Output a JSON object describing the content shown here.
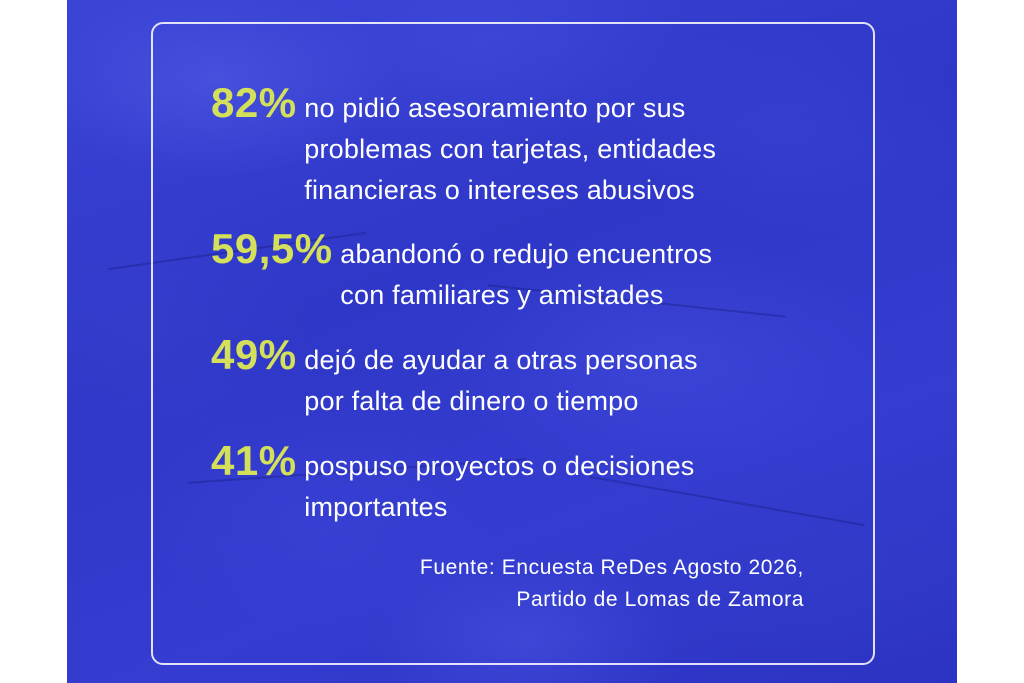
{
  "stats": [
    {
      "percent": "82%",
      "line1": "no pidió asesoramiento por sus",
      "line2": "problemas con tarjetas, entidades",
      "line3": "financieras o intereses abusivos"
    },
    {
      "percent": "59,5%",
      "line1": "abandonó o redujo encuentros",
      "line2": "con familiares y amistades"
    },
    {
      "percent": "49%",
      "line1": "dejó de ayudar a otras personas",
      "line2": "por falta de dinero o tiempo"
    },
    {
      "percent": "41%",
      "line1": "pospuso proyectos o decisiones",
      "line2": "importantes"
    }
  ],
  "source": {
    "line1": "Fuente: Encuesta ReDes Agosto 2026,",
    "line2": "Partido de Lomas de Zamora"
  },
  "colors": {
    "background": "#3a44d6",
    "accent": "#d4e05a",
    "text": "#ffffff"
  }
}
